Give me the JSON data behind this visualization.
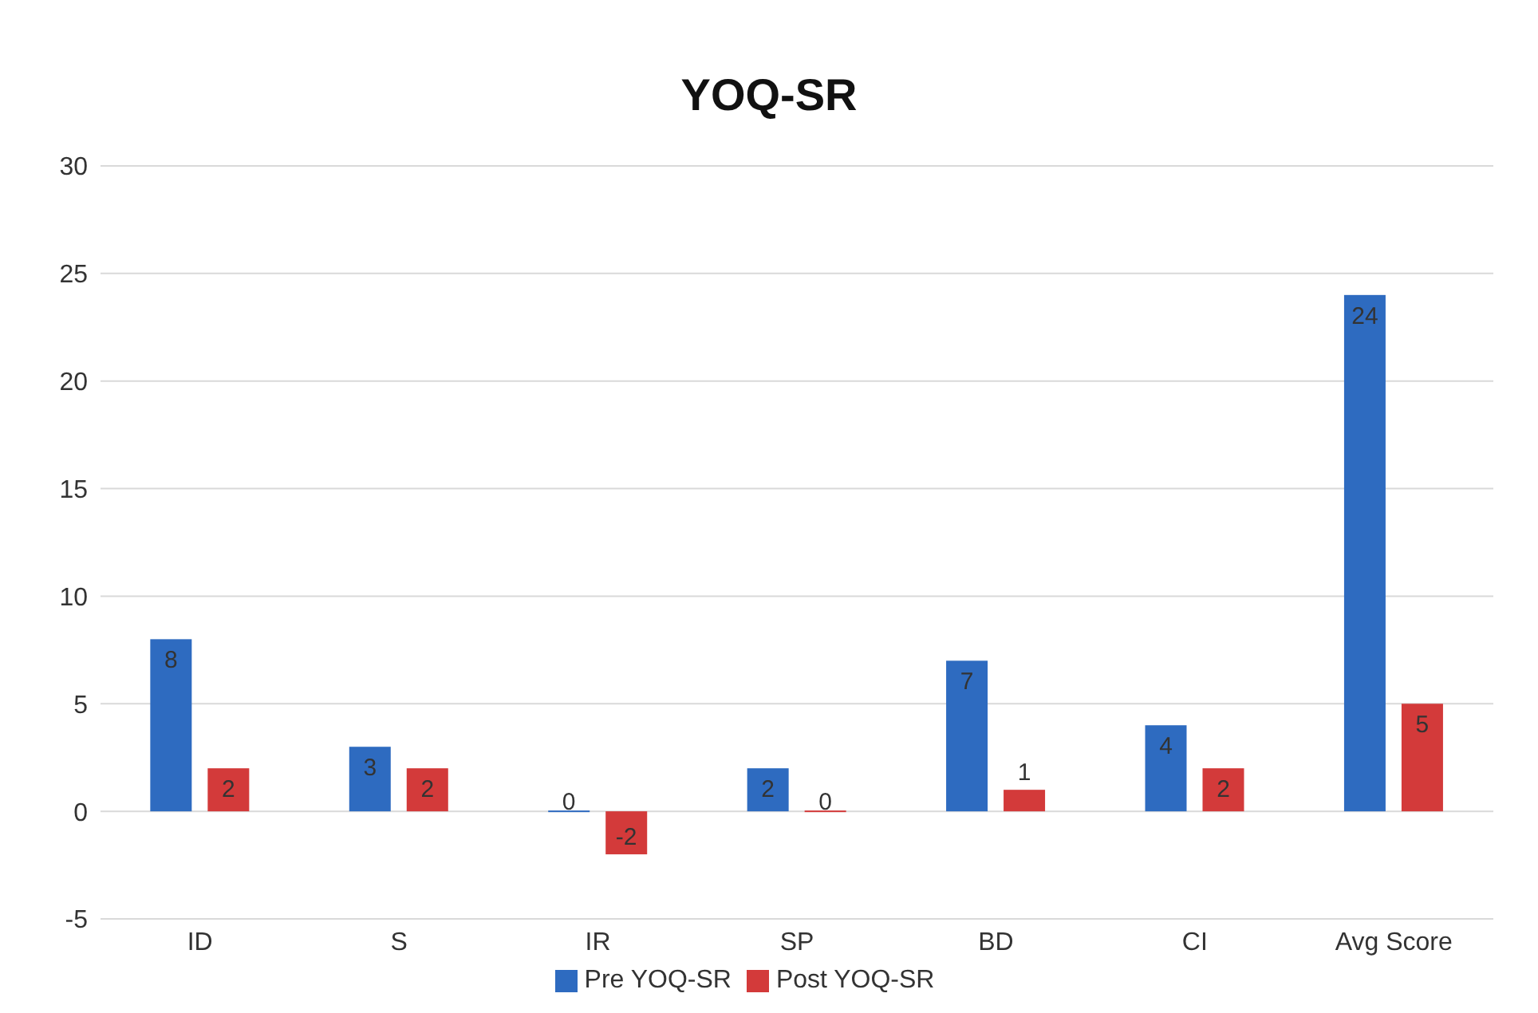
{
  "chart_data": {
    "type": "bar",
    "title": "YOQ-SR",
    "categories": [
      "ID",
      "S",
      "IR",
      "SP",
      "BD",
      "CI",
      "Avg Score"
    ],
    "series": [
      {
        "name": "Pre YOQ-SR",
        "color": "#2e6bc0",
        "values": [
          8,
          3,
          0,
          2,
          7,
          4,
          24
        ]
      },
      {
        "name": "Post YOQ-SR",
        "color": "#d33a3a",
        "values": [
          2,
          2,
          -2,
          0,
          1,
          2,
          5
        ]
      }
    ],
    "ylim": [
      -5,
      30
    ],
    "yticks": [
      -5,
      0,
      5,
      10,
      15,
      20,
      25,
      30
    ],
    "data_labels": true,
    "grid": "y",
    "legend": "bottom"
  }
}
